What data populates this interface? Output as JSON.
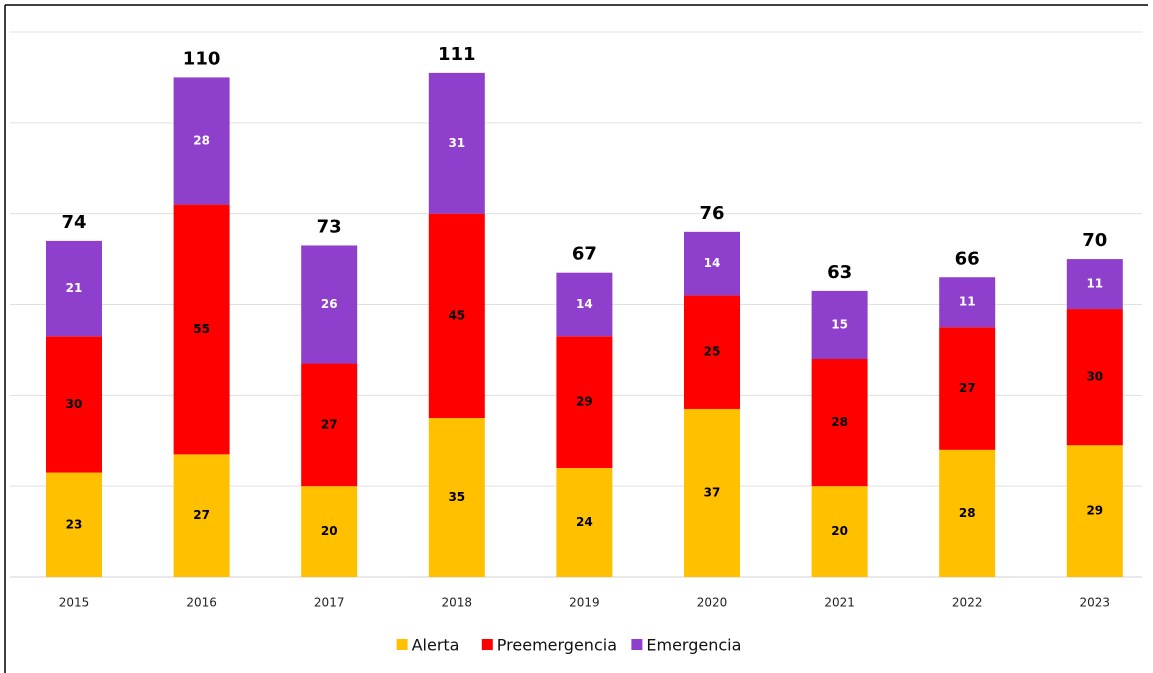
{
  "chart_data": {
    "type": "stacked_bar",
    "categories": [
      "2015",
      "2016",
      "2017",
      "2018",
      "2019",
      "2020",
      "2021",
      "2022",
      "2023"
    ],
    "series": [
      {
        "name": "Alerta",
        "color": "#ffc000",
        "values": [
          23,
          27,
          20,
          35,
          24,
          37,
          20,
          28,
          29
        ]
      },
      {
        "name": "Preemergencia",
        "color": "#ff0000",
        "values": [
          30,
          55,
          27,
          45,
          29,
          25,
          28,
          27,
          30
        ]
      },
      {
        "name": "Emergencia",
        "color": "#8e3fcb",
        "values": [
          21,
          28,
          26,
          31,
          14,
          14,
          15,
          11,
          11
        ]
      }
    ],
    "totals": [
      74,
      110,
      73,
      111,
      67,
      76,
      63,
      66,
      70
    ],
    "ylim": [
      0,
      120
    ],
    "yticks": [
      0,
      20,
      40,
      60,
      80,
      100,
      120
    ],
    "grid": true,
    "legend": "bottom"
  }
}
